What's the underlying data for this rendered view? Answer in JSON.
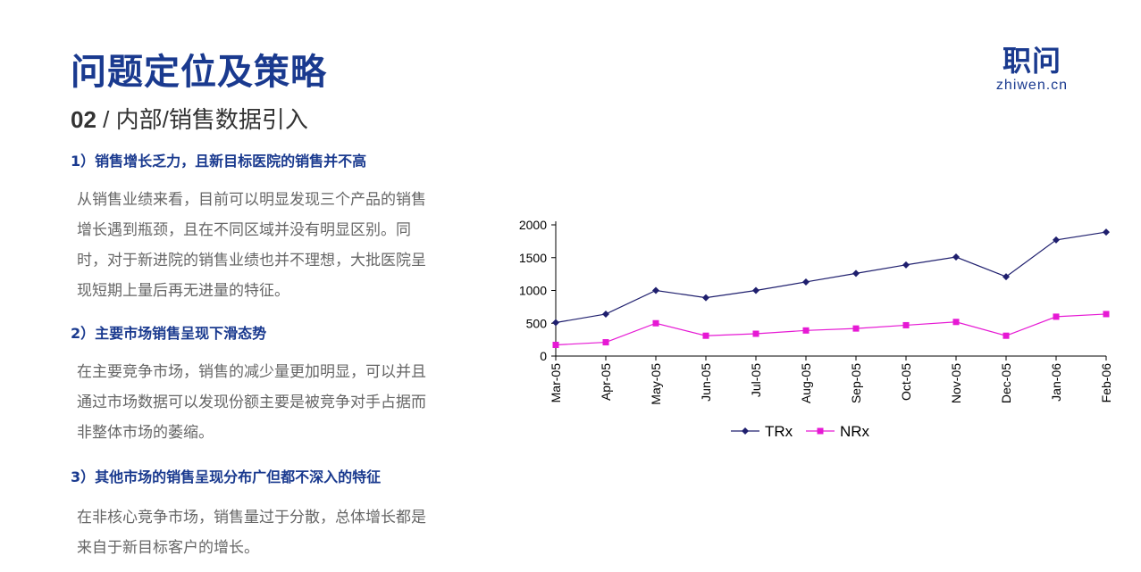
{
  "header": {
    "title": "问题定位及策略",
    "subtitle_num": "02",
    "subtitle_rest": " / 内部/销售数据引入"
  },
  "logo": {
    "cn": "职问",
    "en": "zhiwen.cn"
  },
  "sections": [
    {
      "heading": "1）销售增长乏力，且新目标医院的销售并不高",
      "lines": [
        "从销售业绩来看，目前可以明显发现三个产品的销售",
        "增长遇到瓶颈，且在不同区域并没有明显区别。同",
        "时，对于新进院的销售业绩也并不理想，大批医院呈",
        "现短期上量后再无进量的特征。"
      ]
    },
    {
      "heading": "2）主要市场销售呈现下滑态势",
      "lines": [
        "在主要竞争市场，销售的减少量更加明显，可以并且",
        "通过市场数据可以发现份额主要是被竞争对手占据而",
        "非整体市场的萎缩。"
      ]
    },
    {
      "heading": "3）其他市场的销售呈现分布广但都不深入的特征",
      "lines": [
        "在非核心竞争市场，销售量过于分散，总体增长都是",
        "来自于新目标客户的增长。"
      ]
    }
  ],
  "colors": {
    "brand": "#1a3a8f",
    "trx": "#1f1f6e",
    "nrx": "#e619d4"
  },
  "chart_data": {
    "type": "line",
    "categories": [
      "Mar-05",
      "Apr-05",
      "May-05",
      "Jun-05",
      "Jul-05",
      "Aug-05",
      "Sep-05",
      "Oct-05",
      "Nov-05",
      "Dec-05",
      "Jan-06",
      "Feb-06"
    ],
    "series": [
      {
        "name": "TRx",
        "values": [
          510,
          640,
          1000,
          890,
          1000,
          1130,
          1260,
          1390,
          1510,
          1210,
          1770,
          1890
        ],
        "marker": "diamond",
        "color": "#1f1f6e"
      },
      {
        "name": "NRx",
        "values": [
          170,
          210,
          500,
          310,
          340,
          390,
          420,
          470,
          520,
          310,
          600,
          640
        ],
        "marker": "square",
        "color": "#e619d4"
      }
    ],
    "ylim": [
      0,
      2000
    ],
    "yticks": [
      "0",
      "500",
      "1000",
      "1500",
      "2000"
    ],
    "grid": false,
    "legend": "bottom"
  }
}
